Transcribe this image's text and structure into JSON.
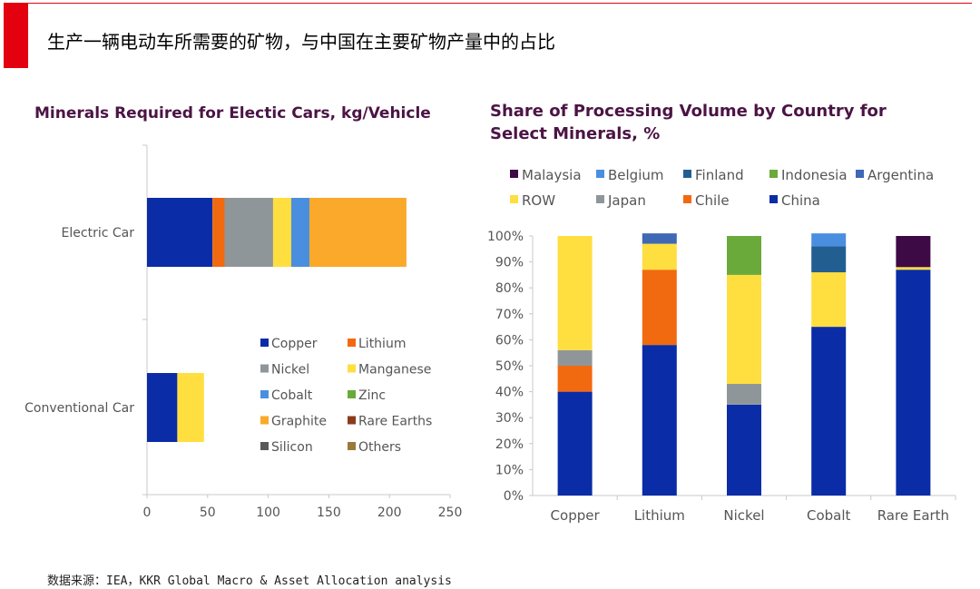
{
  "header": {
    "title": "生产一辆电动车所需要的矿物，与中国在主要矿物产量中的占比"
  },
  "source": "数据来源：IEA，KKR Global Macro & Asset Allocation analysis",
  "chart_data": [
    {
      "type": "bar",
      "orientation": "horizontal",
      "stacked": true,
      "title": "Minerals Required for Electic Cars, kg/Vehicle",
      "categories": [
        "Electric Car",
        "Conventional Car"
      ],
      "xlim": [
        0,
        250
      ],
      "xticks": [
        "0",
        "50",
        "100",
        "150",
        "200",
        "250"
      ],
      "legend_position": "bottom-right",
      "series": [
        {
          "name": "Copper",
          "color": "#0a2ca6",
          "values": [
            54,
            25
          ]
        },
        {
          "name": "Lithium",
          "color": "#f26a10",
          "values": [
            10,
            0
          ]
        },
        {
          "name": "Nickel",
          "color": "#8f969a",
          "values": [
            40,
            0
          ]
        },
        {
          "name": "Manganese",
          "color": "#ffde3f",
          "values": [
            15,
            22
          ]
        },
        {
          "name": "Cobalt",
          "color": "#4a8fdf",
          "values": [
            15,
            0
          ]
        },
        {
          "name": "Zinc",
          "color": "#6aaa3a",
          "values": [
            0,
            0
          ]
        },
        {
          "name": "Graphite",
          "color": "#faa92a",
          "values": [
            80,
            0
          ]
        },
        {
          "name": "Rare Earths",
          "color": "#8b3b1c",
          "values": [
            0,
            0
          ]
        },
        {
          "name": "Silicon",
          "color": "#595959",
          "values": [
            0,
            0
          ]
        },
        {
          "name": "Others",
          "color": "#9a7a3a",
          "values": [
            0,
            0
          ]
        }
      ]
    },
    {
      "type": "bar",
      "orientation": "vertical",
      "stacked": true,
      "title": "Share of Processing Volume by Country for Select Minerals, %",
      "categories": [
        "Copper",
        "Lithium",
        "Nickel",
        "Cobalt",
        "Rare Earth"
      ],
      "ylim": [
        0,
        100
      ],
      "yticks": [
        "0%",
        "10%",
        "20%",
        "30%",
        "40%",
        "50%",
        "60%",
        "70%",
        "80%",
        "90%",
        "100%"
      ],
      "legend_position": "top",
      "legend_order": [
        "Malaysia",
        "Belgium",
        "Finland",
        "Indonesia",
        "Argentina",
        "ROW",
        "Japan",
        "Chile",
        "China"
      ],
      "series": [
        {
          "name": "China",
          "color": "#0a2ca6",
          "values": [
            40,
            58,
            35,
            65,
            87
          ]
        },
        {
          "name": "Chile",
          "color": "#f26a10",
          "values": [
            10,
            29,
            0,
            0,
            0
          ]
        },
        {
          "name": "Japan",
          "color": "#8f969a",
          "values": [
            6,
            0,
            8,
            0,
            0
          ]
        },
        {
          "name": "ROW",
          "color": "#ffde3f",
          "values": [
            44,
            10,
            42,
            21,
            1
          ]
        },
        {
          "name": "Argentina",
          "color": "#3f68b5",
          "values": [
            0,
            4,
            0,
            0,
            0
          ]
        },
        {
          "name": "Indonesia",
          "color": "#6aaa3a",
          "values": [
            0,
            0,
            15,
            0,
            0
          ]
        },
        {
          "name": "Finland",
          "color": "#225f90",
          "values": [
            0,
            0,
            0,
            10,
            0
          ]
        },
        {
          "name": "Belgium",
          "color": "#4a8fdf",
          "values": [
            0,
            0,
            0,
            5,
            0
          ]
        },
        {
          "name": "Malaysia",
          "color": "#3d0a45",
          "values": [
            0,
            0,
            0,
            0,
            12
          ]
        }
      ]
    }
  ]
}
